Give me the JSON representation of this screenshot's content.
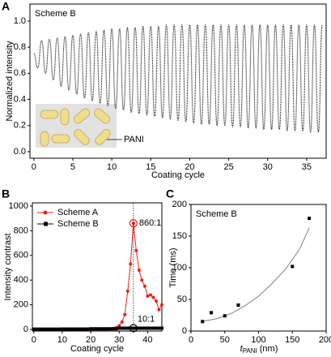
{
  "chart_data": [
    {
      "type": "line",
      "label": "A",
      "title": "Scheme B",
      "xlabel": "Coating cycle",
      "ylabel": "Normalized intensity",
      "annotation": "PANI",
      "xlim": [
        -0.5,
        37.5
      ],
      "ylim": [
        -0.05,
        1.13
      ],
      "xticks": [
        0,
        5,
        10,
        15,
        20,
        25,
        30,
        35
      ],
      "yticks": [
        {
          "value": 0,
          "label": "0.0"
        },
        0.2,
        0.4,
        0.6,
        0.8,
        {
          "value": 1,
          "label": "1.0"
        }
      ],
      "x": [
        0,
        0.5,
        1,
        1.5,
        2,
        2.5,
        3,
        3.5,
        4,
        4.5,
        5,
        5.5,
        6,
        6.5,
        7,
        7.5,
        8,
        8.5,
        9,
        9.5,
        10,
        10.5,
        11,
        11.5,
        12,
        12.5,
        13,
        13.5,
        14,
        14.5,
        15,
        15.5,
        16,
        16.5,
        17,
        17.5,
        18,
        18.5,
        19,
        19.5,
        20,
        20.5,
        21,
        21.5,
        22,
        22.5,
        23,
        23.5,
        24,
        24.5,
        25,
        25.5,
        26,
        26.5,
        27,
        27.5,
        28,
        28.5,
        29,
        29.5,
        30,
        30.5,
        31,
        31.5,
        32,
        32.5,
        33,
        33.5,
        34,
        34.5,
        35,
        35.5,
        36,
        36.5,
        37
      ],
      "series": [
        {
          "color": "#000000",
          "linestyle": "dotted",
          "values": [
            0.75,
            0.64,
            0.85,
            0.6,
            0.86,
            0.55,
            0.87,
            0.5,
            0.88,
            0.47,
            0.89,
            0.44,
            0.9,
            0.41,
            0.91,
            0.39,
            0.92,
            0.37,
            0.93,
            0.35,
            0.94,
            0.33,
            0.94,
            0.32,
            0.95,
            0.3,
            0.95,
            0.29,
            0.96,
            0.28,
            0.96,
            0.27,
            0.96,
            0.26,
            0.97,
            0.25,
            0.97,
            0.24,
            0.97,
            0.23,
            0.97,
            0.22,
            0.97,
            0.21,
            0.97,
            0.21,
            0.97,
            0.2,
            0.97,
            0.2,
            0.97,
            0.19,
            0.97,
            0.19,
            0.97,
            0.18,
            0.97,
            0.18,
            0.97,
            0.17,
            0.97,
            0.17,
            0.97,
            0.17,
            0.97,
            0.16,
            0.97,
            0.16,
            0.97,
            0.16,
            0.97,
            0.15,
            0.97,
            0.15,
            0.97
          ]
        }
      ]
    },
    {
      "type": "line",
      "label": "B",
      "xlabel": "Coating cycle",
      "ylabel": "Intensity contrast",
      "legend": "upper left",
      "xlim": [
        -0.5,
        45
      ],
      "ylim": [
        -13,
        1026
      ],
      "xticks": [
        0,
        10,
        20,
        30,
        40
      ],
      "yticks": [
        0,
        200,
        400,
        600,
        800,
        1000
      ],
      "x": [
        0,
        1,
        2,
        3,
        4,
        5,
        6,
        7,
        8,
        9,
        10,
        11,
        12,
        13,
        14,
        15,
        16,
        17,
        18,
        19,
        20,
        21,
        22,
        23,
        24,
        25,
        26,
        27,
        28,
        29,
        30,
        31,
        32,
        33,
        34,
        35,
        36,
        37,
        38,
        39,
        40,
        41,
        42,
        43,
        44,
        45
      ],
      "series": [
        {
          "name": "Scheme A",
          "color": "#e8201c",
          "marker": "circle",
          "values": [
            3,
            3,
            3,
            3,
            3,
            3,
            3,
            3,
            3,
            3,
            3,
            3,
            3,
            3,
            3,
            3,
            3,
            3,
            3,
            3,
            3,
            3,
            3,
            3,
            3,
            3,
            4,
            5,
            8,
            15,
            30,
            60,
            120,
            310,
            530,
            860,
            640,
            480,
            400,
            350,
            270,
            280,
            260,
            230,
            160,
            200
          ]
        },
        {
          "name": "Scheme B",
          "color": "#000000",
          "marker": "square",
          "values": [
            2,
            2,
            2,
            2,
            2,
            2,
            2,
            2,
            2,
            2,
            3,
            3,
            3,
            3,
            3,
            3,
            3,
            3,
            3,
            3,
            5,
            5,
            5,
            5,
            5,
            5,
            5,
            5,
            5,
            5,
            10,
            10,
            10,
            10,
            10,
            10,
            10,
            10,
            10,
            10,
            10,
            10,
            10,
            10,
            10,
            10
          ]
        }
      ],
      "annotations": [
        {
          "text": "860:1",
          "x": 35,
          "y": 860,
          "color": "#e8201c"
        },
        {
          "text": "10:1",
          "x": 35,
          "y": 10,
          "color": "#000000"
        }
      ]
    },
    {
      "type": "scatter",
      "label": "C",
      "title": "Scheme B",
      "ylabel": "Time (ms)",
      "xlabel": {
        "symbol": "t",
        "subscript": "PANI",
        "unit": "(nm)"
      },
      "xlim": [
        0,
        200
      ],
      "ylim": [
        0,
        200
      ],
      "xticks": [
        0,
        50,
        100,
        150,
        200
      ],
      "yticks": [
        0,
        50,
        100,
        150,
        200
      ],
      "series": [
        {
          "color": "#000000",
          "marker": "square",
          "x": [
            17,
            30,
            50,
            70,
            150,
            175
          ],
          "values": [
            15,
            29,
            24,
            41,
            102,
            178
          ]
        }
      ],
      "fit": {
        "color": "#808080",
        "x": [
          17,
          40,
          60,
          80,
          100,
          120,
          140,
          160,
          175
        ],
        "values": [
          15,
          20,
          28,
          40,
          55,
          75,
          98,
          128,
          163
        ]
      }
    }
  ]
}
